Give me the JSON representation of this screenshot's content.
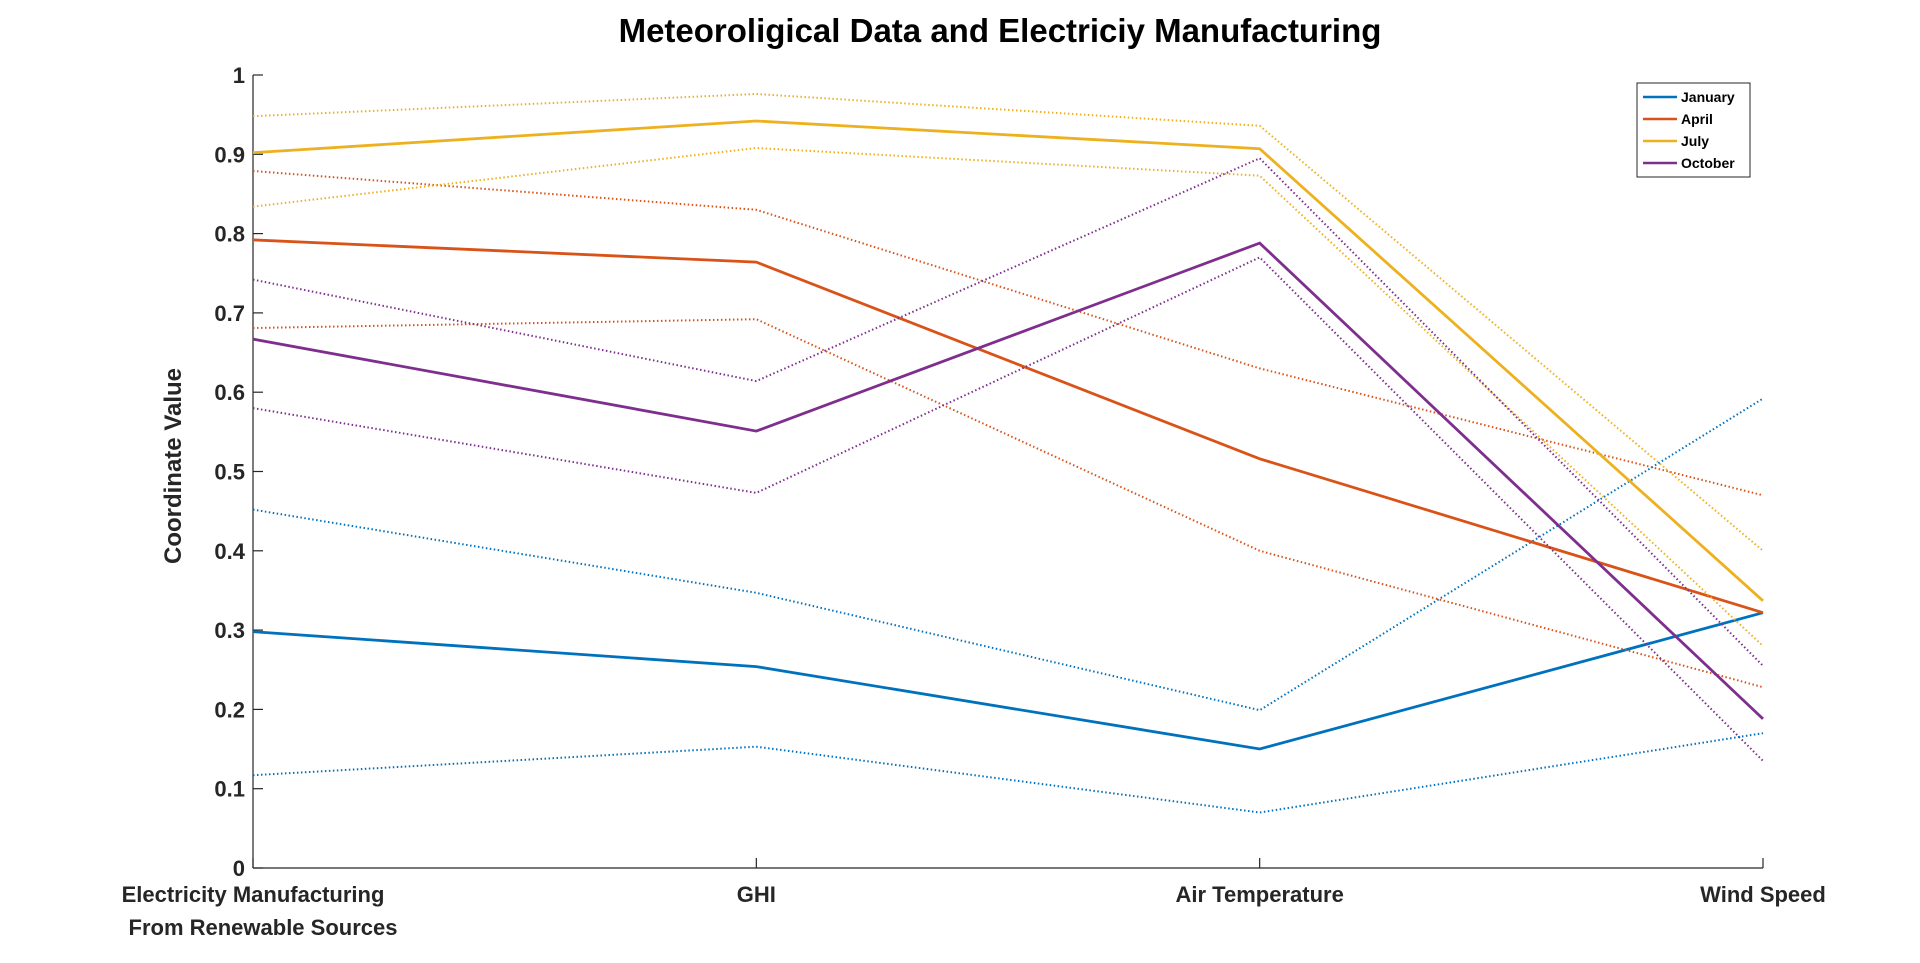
{
  "chart_data": {
    "type": "line",
    "subtype": "parallel-coordinates",
    "title": "Meteoroligical Data and Electriciy Manufacturing",
    "xlabel": "",
    "ylabel": "Coordinate Value",
    "categories": [
      [
        "Electricity Manufacturing",
        "From Renewable Sources"
      ],
      [
        "GHI"
      ],
      [
        "Air Temperature"
      ],
      [
        "Wind Speed"
      ]
    ],
    "ylim": [
      0,
      1
    ],
    "yticks": [
      "0",
      "0.1",
      "0.2",
      "0.3",
      "0.4",
      "0.5",
      "0.6",
      "0.7",
      "0.8",
      "0.9",
      "1"
    ],
    "grid": false,
    "legend_position": "top-right",
    "line_styles": {
      "mean": "solid",
      "bounds": "dotted"
    },
    "series": [
      {
        "name": "January",
        "color": "#0072BD",
        "values": [
          0.298,
          0.254,
          0.15,
          0.322
        ],
        "upper": [
          0.452,
          0.347,
          0.199,
          0.592
        ],
        "lower": [
          0.117,
          0.153,
          0.07,
          0.17
        ]
      },
      {
        "name": "April",
        "color": "#D95319",
        "values": [
          0.792,
          0.764,
          0.516,
          0.322
        ],
        "upper": [
          0.879,
          0.83,
          0.63,
          0.47
        ],
        "lower": [
          0.681,
          0.692,
          0.4,
          0.228
        ]
      },
      {
        "name": "July",
        "color": "#EDB120",
        "values": [
          0.902,
          0.942,
          0.907,
          0.337
        ],
        "upper": [
          0.948,
          0.976,
          0.936,
          0.4
        ],
        "lower": [
          0.834,
          0.908,
          0.873,
          0.28
        ]
      },
      {
        "name": "October",
        "color": "#7E2F8E",
        "values": [
          0.667,
          0.551,
          0.788,
          0.188
        ],
        "upper": [
          0.742,
          0.614,
          0.895,
          0.255
        ],
        "lower": [
          0.58,
          0.473,
          0.77,
          0.135
        ]
      }
    ]
  }
}
